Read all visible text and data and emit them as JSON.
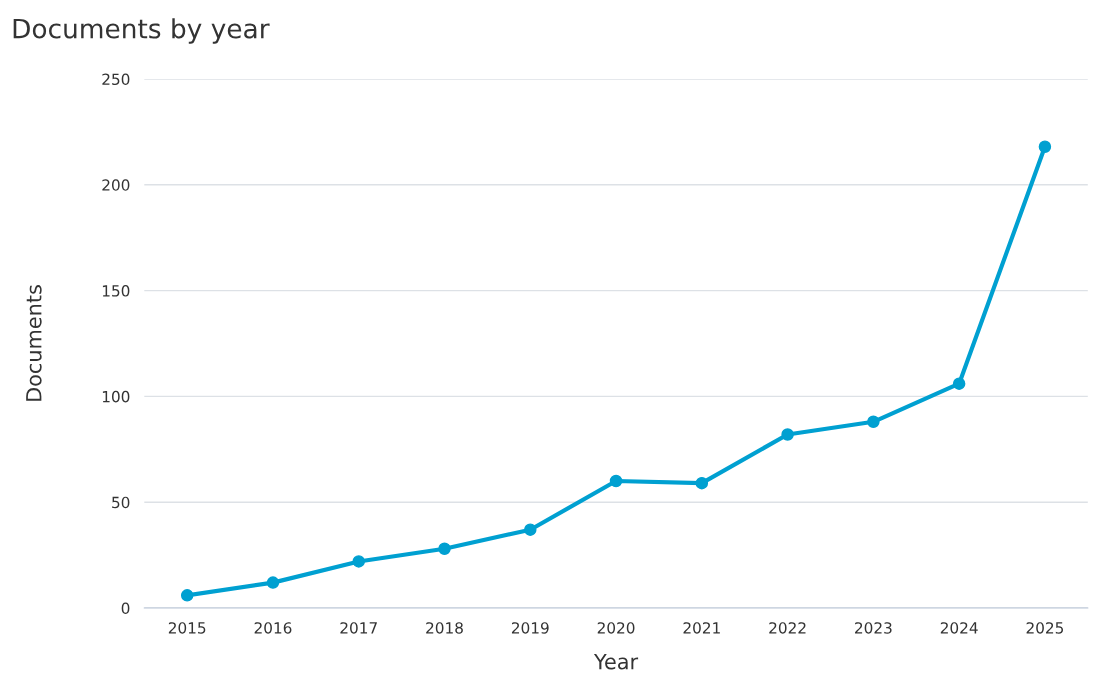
{
  "chart_data": {
    "type": "line",
    "title": "Documents by year",
    "xlabel": "Year",
    "ylabel": "Documents",
    "categories": [
      "2015",
      "2016",
      "2017",
      "2018",
      "2019",
      "2020",
      "2021",
      "2022",
      "2023",
      "2024",
      "2025"
    ],
    "series": [
      {
        "color": "#00a0d1",
        "values": [
          6,
          12,
          22,
          28,
          37,
          60,
          59,
          82,
          88,
          106,
          218
        ]
      }
    ],
    "ylim": [
      0,
      250
    ],
    "yticks": [
      0,
      50,
      100,
      150,
      200,
      250
    ],
    "grid": "y",
    "marker": "circle",
    "line_style": "solid"
  }
}
